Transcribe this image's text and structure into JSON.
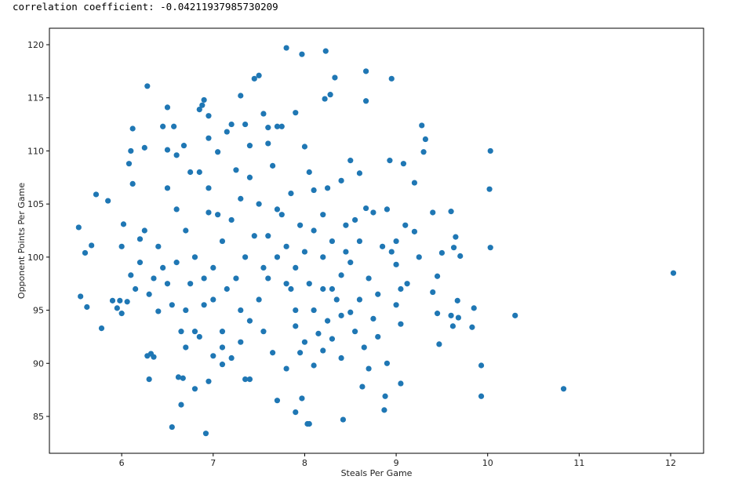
{
  "output_text": "correlation coefficient: -0.04211937985730209",
  "chart_data": {
    "type": "scatter",
    "color": "#1f77b4",
    "xlabel": "Steals Per Game",
    "ylabel": "Opponent Points Per Game",
    "xlim": [
      5.21,
      12.36
    ],
    "ylim": [
      81.53,
      121.55
    ],
    "xticks": [
      6,
      7,
      8,
      9,
      10,
      11,
      12
    ],
    "yticks": [
      85,
      90,
      95,
      100,
      105,
      110,
      115,
      120
    ],
    "x": [
      5.53,
      5.55,
      5.6,
      5.62,
      5.67,
      5.72,
      5.78,
      5.85,
      5.9,
      5.95,
      5.98,
      6.0,
      6.0,
      6.02,
      6.06,
      6.08,
      6.1,
      6.12,
      6.12,
      6.2,
      6.25,
      6.28,
      6.28,
      6.3,
      6.32,
      6.35,
      6.4,
      6.45,
      6.5,
      6.5,
      6.55,
      6.57,
      6.6,
      6.62,
      6.65,
      6.67,
      6.68,
      6.75,
      6.8,
      6.85,
      6.88,
      6.9,
      6.92,
      6.95,
      6.95,
      6.95,
      7.0,
      7.45,
      7.5,
      7.3,
      7.8,
      7.97,
      8.23,
      8.33,
      8.67,
      8.95,
      8.28,
      8.22,
      8.67,
      7.1,
      7.35,
      7.4,
      7.7,
      7.9,
      7.97,
      8.03,
      8.05,
      8.42,
      8.63,
      8.88,
      8.87,
      9.05,
      9.28,
      9.32,
      9.3,
      9.2,
      8.93,
      9.08,
      9.4,
      9.6,
      9.65,
      9.7,
      9.63,
      9.5,
      9.45,
      9.4,
      9.45,
      9.47,
      9.6,
      9.62,
      9.67,
      9.68,
      9.83,
      9.85,
      9.93,
      9.93,
      10.02,
      10.03,
      10.03,
      10.3,
      10.83,
      12.03,
      9.25,
      9.2,
      9.12,
      9.0,
      9.0,
      9.05,
      9.05,
      9.0,
      8.9,
      8.8,
      8.75,
      8.85,
      8.75,
      8.67,
      8.6,
      8.5,
      8.4,
      8.45,
      8.4,
      8.5,
      8.55,
      8.4,
      8.3,
      8.2,
      8.1,
      8.0,
      7.9,
      7.85,
      7.8,
      7.7,
      7.65,
      7.6,
      7.55,
      7.6,
      7.7,
      7.75,
      7.9,
      8.0,
      8.1,
      8.2,
      8.3,
      8.2,
      8.1,
      7.9,
      7.6,
      7.5,
      7.4,
      7.3,
      7.2,
      7.1,
      7.0,
      6.9,
      6.8,
      6.7,
      6.6,
      6.5,
      6.4,
      6.35,
      6.3,
      6.5,
      6.6,
      6.7,
      6.8,
      6.9,
      7.0,
      7.1,
      7.2,
      7.3,
      7.4,
      7.5,
      7.6,
      7.7,
      7.8,
      7.9,
      8.0,
      8.1,
      8.2,
      8.3,
      8.4,
      8.5,
      8.6,
      8.7,
      8.8,
      7.25,
      7.35,
      7.45,
      7.55,
      7.15,
      7.05,
      6.95,
      6.85,
      7.25,
      7.4,
      7.15,
      7.2,
      7.35,
      7.05,
      6.95,
      6.75,
      6.65,
      6.55,
      6.45,
      6.2,
      6.15,
      6.1,
      6.25,
      6.7,
      6.85,
      7.1,
      7.3,
      7.55,
      7.65,
      7.8,
      7.95,
      8.15,
      8.35,
      8.45,
      8.55,
      8.25,
      8.05,
      7.85,
      7.75,
      7.95,
      8.05,
      8.25,
      8.65,
      8.7,
      8.6,
      8.95,
      9.1,
      8.9
    ],
    "values": [
      102.8,
      96.3,
      100.4,
      95.3,
      101.1,
      105.9,
      93.3,
      105.3,
      95.9,
      95.2,
      95.9,
      101.0,
      94.7,
      103.1,
      95.8,
      108.8,
      110.0,
      112.1,
      106.9,
      101.7,
      110.3,
      116.1,
      90.7,
      88.5,
      90.9,
      90.6,
      94.9,
      112.3,
      114.1,
      110.1,
      84.0,
      112.3,
      109.6,
      88.7,
      86.1,
      88.6,
      110.5,
      108.0,
      87.6,
      113.9,
      114.3,
      114.8,
      83.4,
      88.3,
      113.3,
      111.2,
      90.7,
      116.8,
      117.1,
      115.2,
      119.7,
      119.1,
      119.4,
      116.9,
      117.5,
      116.8,
      115.3,
      114.9,
      114.7,
      89.9,
      88.5,
      88.5,
      86.5,
      85.4,
      86.7,
      84.3,
      84.3,
      84.7,
      87.8,
      86.9,
      85.6,
      88.1,
      112.4,
      111.1,
      109.9,
      107.0,
      109.1,
      108.8,
      104.2,
      104.3,
      101.9,
      100.1,
      100.9,
      100.4,
      98.2,
      96.7,
      94.7,
      91.8,
      94.5,
      93.5,
      95.9,
      94.3,
      93.4,
      95.2,
      89.8,
      86.9,
      106.4,
      110.0,
      100.9,
      94.5,
      87.6,
      98.5,
      100.0,
      102.4,
      97.5,
      101.5,
      99.3,
      97.0,
      93.7,
      95.5,
      90.0,
      92.5,
      94.2,
      101.0,
      104.2,
      104.6,
      107.9,
      109.1,
      107.2,
      103.0,
      98.3,
      94.8,
      93.0,
      90.5,
      92.3,
      91.2,
      89.8,
      92.0,
      93.5,
      97.0,
      101.0,
      104.5,
      108.6,
      110.7,
      113.5,
      112.2,
      112.3,
      112.3,
      113.6,
      110.4,
      106.3,
      104.0,
      101.5,
      97.0,
      95.0,
      99.0,
      98.0,
      96.0,
      94.0,
      92.0,
      90.5,
      93.0,
      96.0,
      98.0,
      100.0,
      102.5,
      104.5,
      106.5,
      101.0,
      98.0,
      96.5,
      97.5,
      99.5,
      95.0,
      93.0,
      95.5,
      99.0,
      101.5,
      103.5,
      105.5,
      107.5,
      105.0,
      102.0,
      100.0,
      97.5,
      95.0,
      100.5,
      102.5,
      100.0,
      97.0,
      94.5,
      99.5,
      101.5,
      98.0,
      96.5,
      98.0,
      100.0,
      102.0,
      99.0,
      97.0,
      104.0,
      106.5,
      108.0,
      108.2,
      110.5,
      111.8,
      112.5,
      112.5,
      109.9,
      104.2,
      97.5,
      93.0,
      95.5,
      99.0,
      99.5,
      97.0,
      98.3,
      102.5,
      91.5,
      92.5,
      91.5,
      95.0,
      93.0,
      91.0,
      89.5,
      91.0,
      92.8,
      96.0,
      100.5,
      103.5,
      106.5,
      108.0,
      106.0,
      104.0,
      103.0,
      97.5,
      94.0,
      91.5,
      89.5,
      96.0,
      100.5,
      103.0,
      104.5
    ]
  }
}
